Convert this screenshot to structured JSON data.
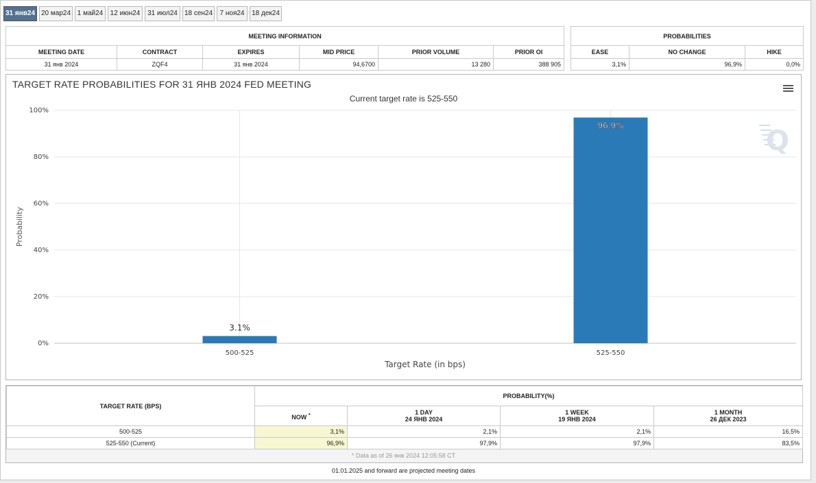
{
  "tabs": [
    "31 янв24",
    "20 мар24",
    "1 май24",
    "12 июн24",
    "31 июл24",
    "18 сен24",
    "7 ноя24",
    "18 дек24"
  ],
  "active_tab": 0,
  "meeting_info": {
    "header": "MEETING INFORMATION",
    "columns": [
      "MEETING DATE",
      "CONTRACT",
      "EXPIRES",
      "MID PRICE",
      "PRIOR VOLUME",
      "PRIOR OI"
    ],
    "row": [
      "31 янв 2024",
      "ZQF4",
      "31 янв 2024",
      "94,6700",
      "13 280",
      "388 905"
    ]
  },
  "probabilities": {
    "header": "PROBABILITIES",
    "columns": [
      "EASE",
      "NO CHANGE",
      "HIKE"
    ],
    "row": [
      "3,1%",
      "96,9%",
      "0,0%"
    ]
  },
  "chart": {
    "title": "TARGET RATE PROBABILITIES FOR 31 ЯНВ 2024 FED MEETING",
    "subtitle": "Current target rate is 525-550",
    "menu_icon": "hamburger-menu-icon",
    "watermark": "Q"
  },
  "chart_data": {
    "type": "bar",
    "categories": [
      "500-525",
      "525-550"
    ],
    "values": [
      3.1,
      96.9
    ],
    "data_labels": [
      "3.1%",
      "96.9%"
    ],
    "xlabel": "Target Rate (in bps)",
    "ylabel": "Probability",
    "ylim": [
      0,
      100
    ],
    "yticks": [
      "0%",
      "20%",
      "40%",
      "60%",
      "80%",
      "100%"
    ],
    "grid": true,
    "bar_color": "#2a7ab8"
  },
  "bottom_table": {
    "target_rate_header": "TARGET RATE (BPS)",
    "probability_header": "PROBABILITY(%)",
    "now_label": "NOW",
    "now_mark": "*",
    "period_cols": [
      {
        "label": "1 DAY",
        "date": "24 ЯНВ 2024"
      },
      {
        "label": "1 WEEK",
        "date": "19 ЯНВ 2024"
      },
      {
        "label": "1 MONTH",
        "date": "26 ДЕК 2023"
      }
    ],
    "rows": [
      {
        "rate": "500-525",
        "now": "3,1%",
        "day": "2,1%",
        "week": "2,1%",
        "month": "16,5%"
      },
      {
        "rate": "525-550 (Current)",
        "now": "96,9%",
        "day": "97,9%",
        "week": "97,9%",
        "month": "83,5%"
      }
    ],
    "data_note": "* Data as of 26 янв 2024 12:05:58 CT",
    "projection_note": "01.01.2025 and forward are projected meeting dates"
  }
}
